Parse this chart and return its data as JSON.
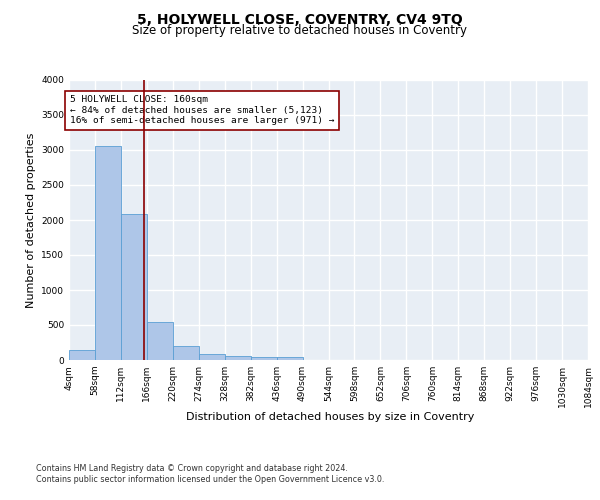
{
  "title": "5, HOLYWELL CLOSE, COVENTRY, CV4 9TQ",
  "subtitle": "Size of property relative to detached houses in Coventry",
  "xlabel": "Distribution of detached houses by size in Coventry",
  "ylabel": "Number of detached properties",
  "bin_edges": [
    4,
    58,
    112,
    166,
    220,
    274,
    328,
    382,
    436,
    490,
    544,
    598,
    652,
    706,
    760,
    814,
    868,
    922,
    976,
    1030,
    1084
  ],
  "bar_heights": [
    140,
    3050,
    2080,
    550,
    200,
    80,
    55,
    40,
    40,
    0,
    0,
    0,
    0,
    0,
    0,
    0,
    0,
    0,
    0,
    0
  ],
  "bar_color": "#aec6e8",
  "bar_edgecolor": "#5a9fd4",
  "background_color": "#e8eef5",
  "grid_color": "#ffffff",
  "vline_x": 160,
  "vline_color": "#8b0000",
  "annotation_text": "5 HOLYWELL CLOSE: 160sqm\n← 84% of detached houses are smaller (5,123)\n16% of semi-detached houses are larger (971) →",
  "annotation_box_color": "#ffffff",
  "annotation_box_edgecolor": "#8b0000",
  "ylim": [
    0,
    4000
  ],
  "yticks": [
    0,
    500,
    1000,
    1500,
    2000,
    2500,
    3000,
    3500,
    4000
  ],
  "footer_line1": "Contains HM Land Registry data © Crown copyright and database right 2024.",
  "footer_line2": "Contains public sector information licensed under the Open Government Licence v3.0.",
  "title_fontsize": 10,
  "subtitle_fontsize": 8.5,
  "tick_fontsize": 6.5,
  "ylabel_fontsize": 8,
  "xlabel_fontsize": 8,
  "annotation_fontsize": 6.8,
  "footer_fontsize": 5.8
}
